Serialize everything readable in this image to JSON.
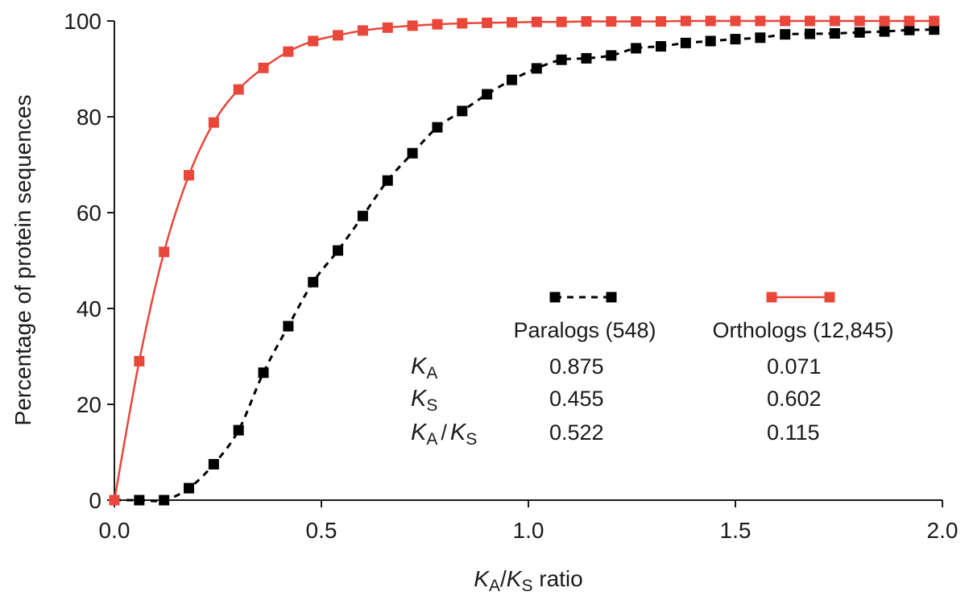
{
  "chart_data": {
    "type": "line",
    "xlabel_parts": [
      "K",
      "A",
      "/",
      "K",
      "S",
      " ratio"
    ],
    "ylabel": "Percentage of protein sequences",
    "xlim": [
      0,
      2.0
    ],
    "ylim": [
      0,
      100
    ],
    "x_ticks": [
      "0.0",
      "0.5",
      "1.0",
      "1.5",
      "2.0"
    ],
    "y_ticks": [
      "0",
      "20",
      "40",
      "60",
      "80",
      "100"
    ],
    "grid": false,
    "legend_position": "right-center",
    "series": [
      {
        "name": "Paralogs (548)",
        "color": "#000000",
        "line_style": "dashed",
        "marker": "square",
        "x": [
          0.0,
          0.06,
          0.12,
          0.18,
          0.24,
          0.3,
          0.36,
          0.42,
          0.48,
          0.54,
          0.6,
          0.66,
          0.72,
          0.78,
          0.84,
          0.9,
          0.96,
          1.02,
          1.08,
          1.14,
          1.2,
          1.26,
          1.32,
          1.38,
          1.44,
          1.5,
          1.56,
          1.62,
          1.68,
          1.74,
          1.8,
          1.86,
          1.92,
          1.98
        ],
        "y": [
          0.0,
          0.0,
          0.0,
          2.5,
          7.5,
          14.6,
          26.6,
          36.3,
          45.5,
          52.1,
          59.3,
          66.7,
          72.4,
          77.8,
          81.2,
          84.7,
          87.7,
          90.1,
          91.9,
          92.2,
          92.8,
          94.3,
          94.7,
          95.4,
          95.8,
          96.2,
          96.5,
          97.2,
          97.3,
          97.4,
          97.6,
          97.8,
          98.1,
          98.2
        ]
      },
      {
        "name": "Orthologs (12,845)",
        "color": "#e8473a",
        "line_style": "solid",
        "marker": "square",
        "x": [
          0.0,
          0.06,
          0.12,
          0.18,
          0.24,
          0.3,
          0.36,
          0.42,
          0.48,
          0.54,
          0.6,
          0.66,
          0.72,
          0.78,
          0.84,
          0.9,
          0.96,
          1.02,
          1.08,
          1.14,
          1.2,
          1.26,
          1.32,
          1.38,
          1.44,
          1.5,
          1.56,
          1.62,
          1.68,
          1.74,
          1.8,
          1.86,
          1.92,
          1.98
        ],
        "y": [
          0.0,
          29.0,
          51.8,
          67.8,
          78.8,
          85.7,
          90.2,
          93.6,
          95.8,
          97.0,
          98.0,
          98.6,
          99.0,
          99.3,
          99.5,
          99.6,
          99.7,
          99.8,
          99.8,
          99.9,
          99.9,
          99.9,
          99.9,
          100,
          100,
          100,
          100,
          100,
          100,
          100,
          100,
          100,
          100,
          100
        ]
      }
    ],
    "stats_table": {
      "columns": [
        "Paralogs (548)",
        "Orthologs (12,845)"
      ],
      "rows": [
        {
          "label_parts": [
            "K",
            "A"
          ],
          "values": [
            "0.875",
            "0.071"
          ]
        },
        {
          "label_parts": [
            "K",
            "S"
          ],
          "values": [
            "0.455",
            "0.602"
          ]
        },
        {
          "label_parts": [
            "K",
            "A",
            "/",
            "K",
            "S"
          ],
          "values": [
            "0.522",
            "0.115"
          ]
        }
      ]
    }
  }
}
